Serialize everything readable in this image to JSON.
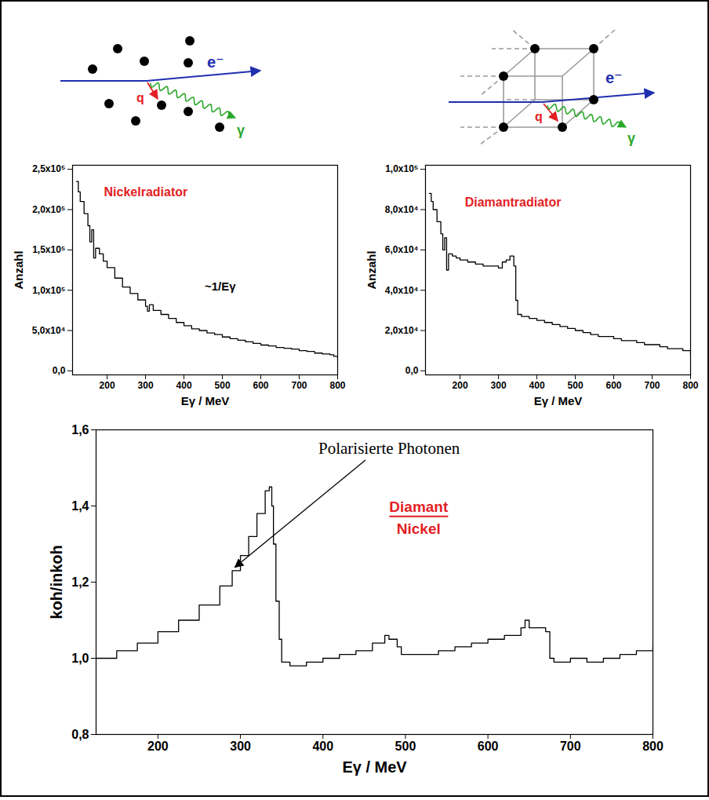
{
  "diagrams": [
    {
      "electron_label": "e⁻",
      "momentum_label": "q",
      "photon_label": "γ"
    },
    {
      "electron_label": "e⁻",
      "momentum_label": "q",
      "photon_label": "γ"
    }
  ],
  "chart_data": [
    {
      "type": "line",
      "title": "Nickelradiator",
      "x_label": "Eγ / MeV",
      "y_label": "Anzahl",
      "annotations": [
        {
          "text": "~1/Eγ"
        }
      ],
      "color": "#000000",
      "line_style": "step",
      "x": [
        120,
        125,
        130,
        140,
        150,
        155,
        160,
        165,
        170,
        180,
        190,
        200,
        220,
        240,
        260,
        280,
        300,
        305,
        310,
        320,
        340,
        360,
        380,
        400,
        420,
        440,
        460,
        480,
        500,
        520,
        540,
        560,
        580,
        600,
        620,
        640,
        660,
        680,
        700,
        720,
        740,
        760,
        780,
        790,
        800
      ],
      "values": [
        235000,
        222000,
        210000,
        195000,
        180000,
        160000,
        175000,
        140000,
        152000,
        145000,
        136000,
        128000,
        115000,
        104000,
        96000,
        88000,
        80000,
        74000,
        82000,
        75000,
        70000,
        65000,
        60000,
        56000,
        52000,
        50000,
        47000,
        45000,
        42000,
        40000,
        38000,
        36000,
        34000,
        32000,
        31000,
        29000,
        28000,
        27000,
        25000,
        24000,
        22000,
        21000,
        20000,
        18000,
        15000
      ],
      "xlim": [
        110,
        800
      ],
      "xticks": [
        200,
        300,
        400,
        500,
        600,
        700,
        800
      ],
      "ylim": [
        -5000,
        255000
      ],
      "yticks": [
        {
          "value": 0,
          "label": "0,0"
        },
        {
          "value": 50000,
          "label": "5,0x10⁴"
        },
        {
          "value": 100000,
          "label": "1,0x10⁵"
        },
        {
          "value": 150000,
          "label": "1,5x10⁵"
        },
        {
          "value": 200000,
          "label": "2,0x10⁵"
        },
        {
          "value": 250000,
          "label": "2,5x10⁵"
        }
      ]
    },
    {
      "type": "line",
      "title": "Diamantradiator",
      "x_label": "Eγ / MeV",
      "y_label": "Anzahl",
      "color": "#000000",
      "line_style": "step",
      "x": [
        120,
        125,
        130,
        140,
        150,
        155,
        160,
        165,
        170,
        180,
        190,
        200,
        220,
        240,
        260,
        280,
        300,
        310,
        320,
        330,
        340,
        345,
        350,
        360,
        380,
        400,
        420,
        440,
        460,
        480,
        500,
        520,
        540,
        560,
        580,
        600,
        620,
        640,
        660,
        680,
        700,
        720,
        740,
        760,
        780,
        790,
        800
      ],
      "values": [
        88000,
        84000,
        80000,
        74000,
        68000,
        60000,
        66000,
        50000,
        58000,
        57000,
        56000,
        55000,
        54000,
        53000,
        52000,
        52000,
        51000,
        54000,
        55000,
        57000,
        52000,
        35000,
        28000,
        27000,
        26000,
        25000,
        24000,
        23000,
        22000,
        21000,
        20000,
        19000,
        18000,
        17000,
        17000,
        16000,
        15000,
        15000,
        14000,
        13000,
        13000,
        12000,
        11000,
        11000,
        10000,
        10000,
        8000
      ],
      "xlim": [
        110,
        800
      ],
      "xticks": [
        200,
        300,
        400,
        500,
        600,
        700,
        800
      ],
      "ylim": [
        -2000,
        102000
      ],
      "yticks": [
        {
          "value": 0,
          "label": "0,0"
        },
        {
          "value": 20000,
          "label": "2,0x10⁴"
        },
        {
          "value": 40000,
          "label": "4,0x10⁴"
        },
        {
          "value": 60000,
          "label": "6,0x10⁴"
        },
        {
          "value": 80000,
          "label": "8,0x10⁴"
        },
        {
          "value": 100000,
          "label": "1,0x10⁵"
        }
      ]
    },
    {
      "type": "line",
      "title": "Diamant",
      "subtitle": "Nickel",
      "x_label": "Eγ / MeV",
      "y_label": "koh/inkoh",
      "annotations": [
        {
          "text": "Polarisierte Photonen"
        }
      ],
      "color": "#000000",
      "line_style": "step",
      "x": [
        125,
        150,
        175,
        200,
        225,
        250,
        275,
        290,
        300,
        310,
        320,
        330,
        335,
        338,
        340,
        343,
        347,
        350,
        360,
        380,
        400,
        420,
        440,
        460,
        475,
        480,
        490,
        495,
        500,
        520,
        540,
        560,
        580,
        600,
        620,
        640,
        645,
        650,
        660,
        670,
        675,
        680,
        700,
        720,
        740,
        760,
        780,
        800
      ],
      "values": [
        1.0,
        1.02,
        1.04,
        1.07,
        1.1,
        1.14,
        1.19,
        1.23,
        1.27,
        1.32,
        1.38,
        1.44,
        1.45,
        1.4,
        1.3,
        1.15,
        1.05,
        0.99,
        0.98,
        0.99,
        1.0,
        1.01,
        1.02,
        1.04,
        1.06,
        1.05,
        1.03,
        1.01,
        1.01,
        1.01,
        1.02,
        1.03,
        1.04,
        1.05,
        1.06,
        1.08,
        1.1,
        1.08,
        1.08,
        1.07,
        1.0,
        0.99,
        1.0,
        0.99,
        1.0,
        1.01,
        1.02,
        1.03
      ],
      "xlim": [
        125,
        800
      ],
      "xticks": [
        200,
        300,
        400,
        500,
        600,
        700,
        800
      ],
      "ylim": [
        0.8,
        1.6
      ],
      "yticks": [
        {
          "value": 0.8,
          "label": "0,8"
        },
        {
          "value": 1.0,
          "label": "1,0"
        },
        {
          "value": 1.2,
          "label": "1,2"
        },
        {
          "value": 1.4,
          "label": "1,4"
        },
        {
          "value": 1.6,
          "label": "1,6"
        }
      ]
    }
  ]
}
